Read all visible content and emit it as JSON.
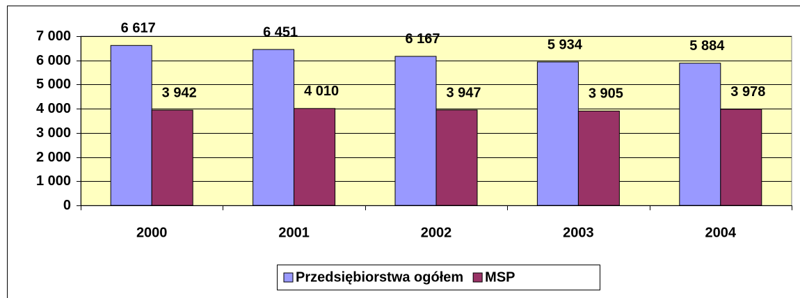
{
  "chart_data": {
    "type": "bar",
    "categories": [
      "2000",
      "2001",
      "2002",
      "2003",
      "2004"
    ],
    "series": [
      {
        "name": "Przedsiębiorstwa ogółem",
        "color": "#9999ff",
        "values": [
          6617,
          6451,
          6167,
          5934,
          5884
        ],
        "value_labels": [
          "6 617",
          "6 451",
          "6 167",
          "5 934",
          "5 884"
        ]
      },
      {
        "name": "MSP",
        "color": "#993366",
        "values": [
          3942,
          4010,
          3947,
          3905,
          3978
        ],
        "value_labels": [
          "3 942",
          "4 010",
          "3 947",
          "3 905",
          "3 978"
        ]
      }
    ],
    "ylim": [
      0,
      7000
    ],
    "yticks": [
      0,
      {
        "value": 1000,
        "label": "1 000"
      },
      {
        "value": 2000,
        "label": "2 000"
      },
      {
        "value": 3000,
        "label": "3 000"
      },
      {
        "value": 4000,
        "label": "4 000"
      },
      {
        "value": 5000,
        "label": "5 000"
      },
      {
        "value": 6000,
        "label": "6 000"
      },
      {
        "value": 7000,
        "label": "7 000"
      }
    ],
    "grid": true,
    "legend": "bottom"
  }
}
